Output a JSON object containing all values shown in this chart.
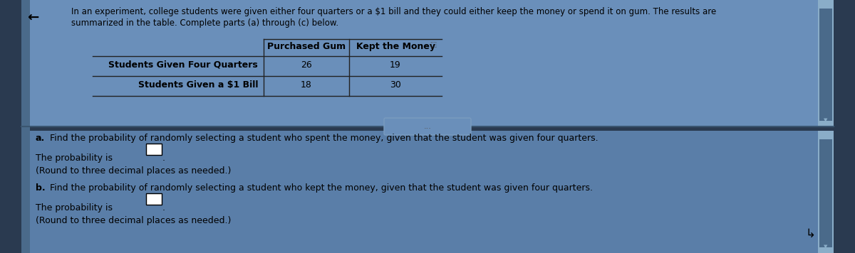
{
  "bg_color": "#2a3a50",
  "panel_color": "#5b7fa6",
  "top_panel_color": "#6a8fba",
  "bottom_panel_color": "#5a7ea8",
  "intro_text_line1": "In an experiment, college students were given either four quarters or a $1 bill and they could either keep the money or spend it on gum. The results are",
  "intro_text_line2": "summarized in the table. Complete parts (a) through (c) below.",
  "table_headers": [
    "Purchased Gum",
    "Kept the Money"
  ],
  "table_rows": [
    [
      "Students Given Four Quarters",
      "26",
      "19"
    ],
    [
      "Students Given a $1 Bill",
      "18",
      "30"
    ]
  ],
  "part_a_label": "a.",
  "part_a_text": "Find the probability of randomly selecting a student who spent the money, given that the student was given four quarters.",
  "part_a_sub": "The probability is",
  "part_a_round": "(Round to three decimal places as needed.)",
  "part_b_label": "b.",
  "part_b_text": "Find the probability of randomly selecting a student who kept the money, given that the student was given four quarters.",
  "part_b_sub": "The probability is",
  "part_b_round": "(Round to three decimal places as needed.)",
  "separator_text": "...",
  "scrollbar_color": "#7a9cbf",
  "scrollbar_track_color": "#8aadc8",
  "scrollbar_thumb_color": "#4a6a8a",
  "text_color": "#000000",
  "table_line_color": "#222222",
  "left_bar_color": "#4a6a8a"
}
